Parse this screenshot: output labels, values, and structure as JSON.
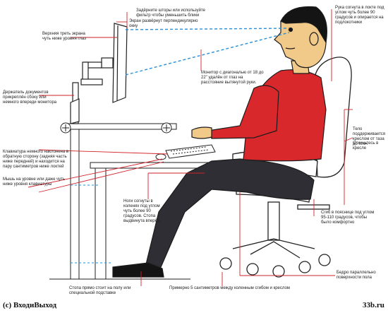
{
  "colors": {
    "annotation": "#d2232a",
    "sightline": "#2a8fd6",
    "shirt": "#d8282c",
    "trousers": "#2e2e34",
    "skin": "#f1c989",
    "hair": "#141414",
    "chair": "#ffffff",
    "outline": "#222222"
  },
  "labels": {
    "blinds": "Задёрните шторы или используйте фильтр чтобы уменьшить блики",
    "screen_perp": "Экран развёрнут перпендикулярно окну",
    "top_third": "Верхняя треть экрана чуть ниже уровня глаз",
    "doc_holder": "Держатель документов прикреплён сбоку или немного впереди монитора",
    "keyboard": "Клавиатура немного наклонена в обратную сторону (задняя часть ниже передней) и находится на пару сантиметров ниже локтей",
    "mouse": "Мышь на уровне или даже чуть ниже уровня клавиатуры",
    "monitor": "Монитор с диагональю от 18 до 22\" удалён от глаз на расстояние вытянутой руки.",
    "arm": "Рука согнута в локте под углом чуть более 90 градусов и опирается на подлокотники",
    "torso": "Тело поддерживается креслом от таза до плеч",
    "lean": "Откиньтесь в кресле",
    "legs": "Ноги согнуты в коленях под углом чуть более 90 градусов. Стопа выдвинута вперёд.",
    "hip": "Сгиб в пояснице под углом 95-110 градусов, чтобы было комфортно",
    "thighs": "Бедро параллельно поверхности пола",
    "feet": "Стопа прямо стоит на полу или специальной подставке",
    "gap": "Примерно 5 сантиметров между коленным сгибом и креслом"
  },
  "footer": {
    "left": "(c) ВходиВыход",
    "right": "33b.ru"
  }
}
